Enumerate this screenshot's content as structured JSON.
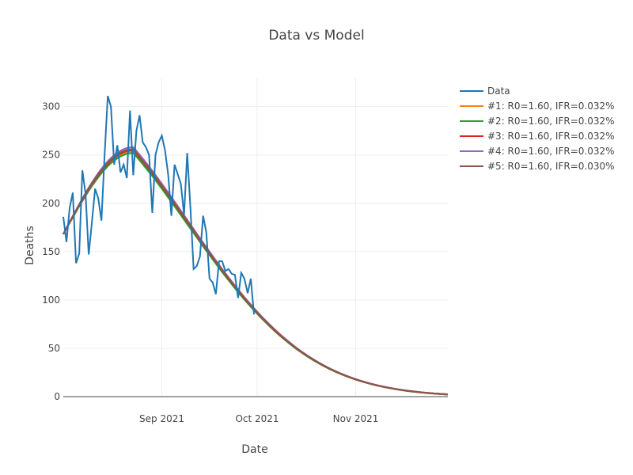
{
  "chart_data": {
    "type": "line",
    "title": "Data vs Model",
    "xlabel": "Date",
    "ylabel": "Deaths",
    "x_start": "2021-08-01",
    "x_end": "2021-11-30",
    "x_ticks": [
      {
        "day": 31,
        "label": "Sep 2021"
      },
      {
        "day": 61,
        "label": "Oct 2021"
      },
      {
        "day": 92,
        "label": "Nov 2021"
      }
    ],
    "ylim": [
      0,
      330
    ],
    "y_ticks": [
      0,
      50,
      100,
      150,
      200,
      250,
      300
    ],
    "grid": true,
    "legend_position": "top-right",
    "observed": {
      "name": "Data",
      "color": "#1f77b4",
      "values": [
        186,
        160,
        195,
        211,
        138,
        148,
        234,
        210,
        147,
        180,
        215,
        205,
        182,
        250,
        311,
        300,
        240,
        260,
        232,
        240,
        226,
        296,
        229,
        275,
        291,
        263,
        258,
        250,
        190,
        250,
        263,
        270,
        255,
        230,
        187,
        240,
        230,
        220,
        188,
        252,
        195,
        132,
        135,
        145,
        187,
        170,
        122,
        118,
        106,
        140,
        140,
        130,
        132,
        127,
        126,
        102,
        128,
        122,
        107,
        122,
        85
      ]
    },
    "model": {
      "start_value": 168,
      "peak_day": 22,
      "left_width": 22,
      "decay_tau": 28,
      "series": [
        {
          "name": "#1: R0=1.60, IFR=0.032%",
          "color": "#ff7f0e",
          "peak": 254
        },
        {
          "name": "#2: R0=1.60, IFR=0.032%",
          "color": "#2ca02c",
          "peak": 252
        },
        {
          "name": "#3: R0=1.60, IFR=0.032%",
          "color": "#d62728",
          "peak": 255
        },
        {
          "name": "#4: R0=1.60, IFR=0.032%",
          "color": "#9467bd",
          "peak": 258
        },
        {
          "name": "#5: R0=1.60, IFR=0.030%",
          "color": "#8c564b",
          "peak": 256
        }
      ]
    }
  }
}
